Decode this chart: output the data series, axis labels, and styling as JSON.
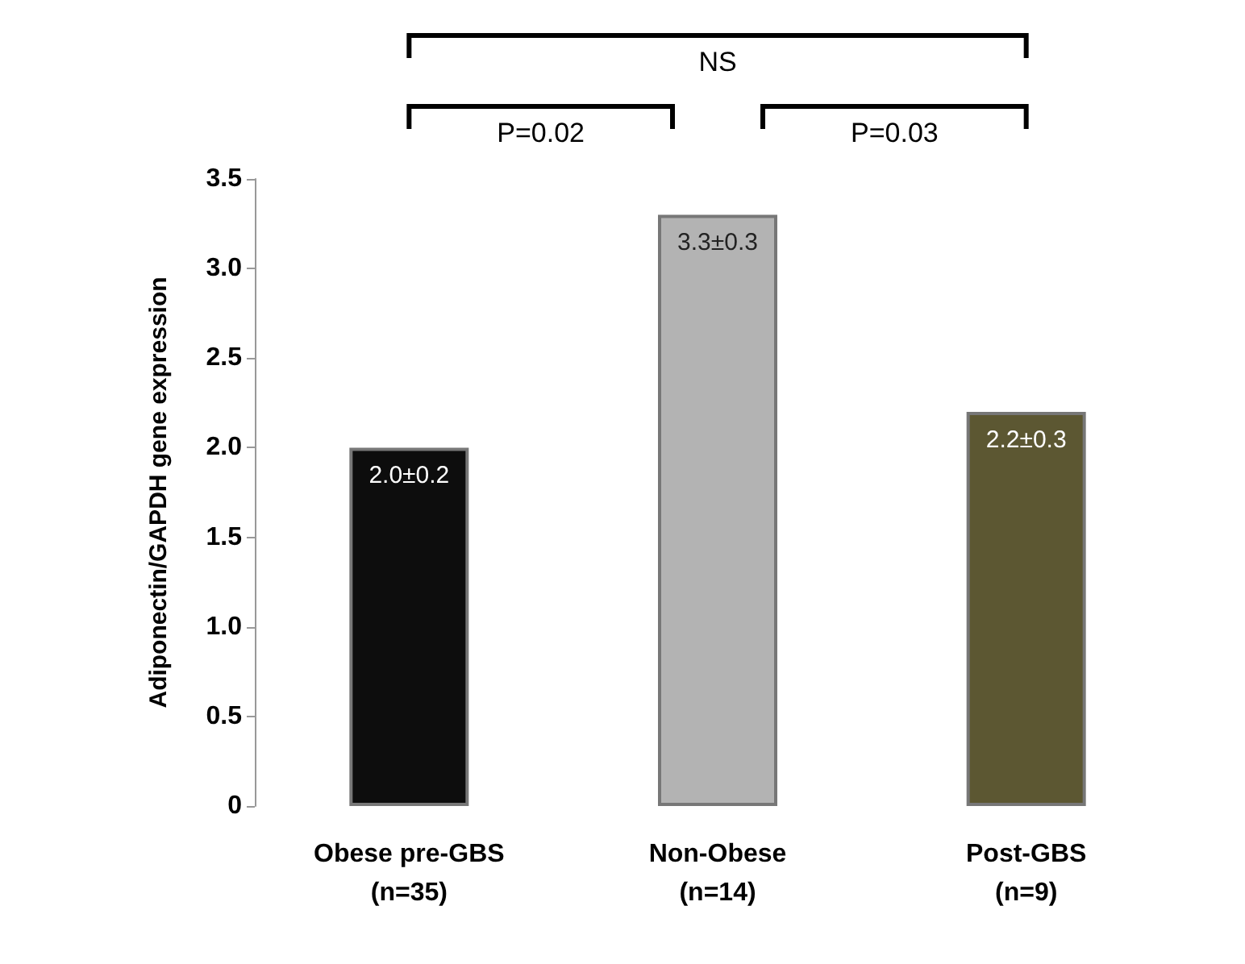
{
  "chart_data": {
    "type": "bar",
    "ylabel": "Adiponectin/GAPDH gene expression",
    "categories": [
      "Obese pre-GBS\n(n=35)",
      "Non-Obese\n(n=14)",
      "Post-GBS\n(n=9)"
    ],
    "values": [
      2.0,
      3.3,
      2.2
    ],
    "colors": [
      "#0d0d0d",
      "#b3b3b3",
      "#5c5732"
    ],
    "value_labels": [
      "2.0±0.2",
      "3.3±0.3",
      "2.2±0.3"
    ],
    "ylim": [
      0,
      3.5
    ],
    "yticks": [
      0,
      0.5,
      {
        "value": 1,
        "label": "1.0"
      },
      1.5,
      {
        "value": 2,
        "label": "2.0"
      },
      2.5,
      {
        "value": 3,
        "label": "3.0"
      },
      3.5
    ],
    "annotations": [
      "P=0.02",
      "P=0.03",
      "NS"
    ],
    "grid": false
  }
}
